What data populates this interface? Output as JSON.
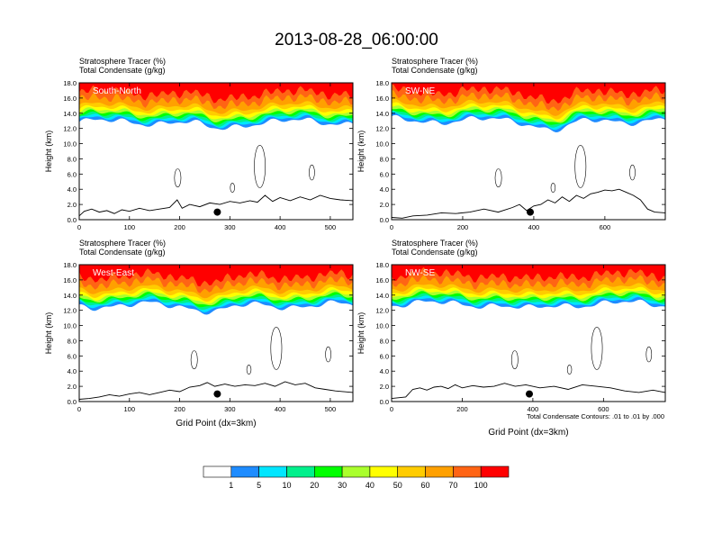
{
  "figure": {
    "title": "2013-08-28_06:00:00",
    "contour_note": "Total Condensate Contours: .01 to .01 by .000"
  },
  "colors": {
    "white": "#ffffff",
    "c1": "#1e8cff",
    "c2": "#00e6ff",
    "c3": "#00f08c",
    "c4": "#00ff00",
    "c5": "#aaff2d",
    "c6": "#ffff00",
    "c7": "#ffcc00",
    "c8": "#ffa000",
    "c9": "#ff6414",
    "c10": "#ff0000",
    "line": "#000000"
  },
  "colorbar": {
    "labels": [
      "1",
      "5",
      "10",
      "20",
      "30",
      "40",
      "50",
      "60",
      "70",
      "100"
    ],
    "colors": [
      "#ffffff",
      "#1e8cff",
      "#00e6ff",
      "#00f08c",
      "#00ff00",
      "#aaff2d",
      "#ffff00",
      "#ffcc00",
      "#ffa000",
      "#ff6414",
      "#ff0000"
    ]
  },
  "chart_data": [
    {
      "type": "heatmap",
      "label": "South-North",
      "title_line1": "Stratosphere Tracer   (%)",
      "title_line2": "Total Condensate   (g/kg)",
      "xlabel": "",
      "ylabel": "Height (km)",
      "xlim": [
        0,
        545
      ],
      "ylim": [
        0,
        18
      ],
      "xticks": [
        "0",
        "100",
        "200",
        "300",
        "400",
        "500"
      ],
      "yticks": [
        "0.0",
        "2.0",
        "4.0",
        "6.0",
        "8.0",
        "10.0",
        "12.0",
        "14.0",
        "16.0",
        "18.0"
      ],
      "tropopause_km": 13.2,
      "marker": {
        "x": 275,
        "y": 1.0
      },
      "terrain_km": [
        [
          0,
          0.5
        ],
        [
          10,
          1.1
        ],
        [
          25,
          1.4
        ],
        [
          40,
          1.0
        ],
        [
          55,
          1.2
        ],
        [
          70,
          0.8
        ],
        [
          85,
          1.3
        ],
        [
          100,
          1.1
        ],
        [
          120,
          1.5
        ],
        [
          140,
          1.2
        ],
        [
          160,
          1.4
        ],
        [
          180,
          1.6
        ],
        [
          195,
          2.6
        ],
        [
          205,
          1.5
        ],
        [
          220,
          2.0
        ],
        [
          240,
          1.7
        ],
        [
          260,
          2.2
        ],
        [
          280,
          2.0
        ],
        [
          300,
          2.4
        ],
        [
          320,
          2.2
        ],
        [
          340,
          2.5
        ],
        [
          355,
          2.3
        ],
        [
          370,
          3.2
        ],
        [
          385,
          2.4
        ],
        [
          400,
          2.9
        ],
        [
          420,
          2.5
        ],
        [
          440,
          3.0
        ],
        [
          460,
          2.6
        ],
        [
          480,
          3.2
        ],
        [
          500,
          2.8
        ],
        [
          520,
          2.6
        ],
        [
          545,
          2.5
        ]
      ]
    },
    {
      "type": "heatmap",
      "label": "SW-NE",
      "title_line1": "Stratosphere Tracer   (%)",
      "title_line2": "Total Condensate   (g/kg)",
      "xlabel": "",
      "ylabel": "Height (km)",
      "xlim": [
        0,
        770
      ],
      "ylim": [
        0,
        18
      ],
      "xticks": [
        "0",
        "200",
        "400",
        "600"
      ],
      "yticks": [
        "0.0",
        "2.0",
        "4.0",
        "6.0",
        "8.0",
        "10.0",
        "12.0",
        "14.0",
        "16.0",
        "18.0"
      ],
      "tropopause_km": 13.4,
      "marker": {
        "x": 390,
        "y": 1.0
      },
      "terrain_km": [
        [
          0,
          0.3
        ],
        [
          30,
          0.2
        ],
        [
          60,
          0.5
        ],
        [
          100,
          0.6
        ],
        [
          140,
          0.9
        ],
        [
          180,
          0.8
        ],
        [
          220,
          1.0
        ],
        [
          260,
          1.4
        ],
        [
          300,
          1.0
        ],
        [
          340,
          1.6
        ],
        [
          360,
          2.0
        ],
        [
          380,
          1.2
        ],
        [
          400,
          1.8
        ],
        [
          420,
          2.0
        ],
        [
          440,
          2.6
        ],
        [
          460,
          2.2
        ],
        [
          480,
          3.0
        ],
        [
          500,
          2.4
        ],
        [
          520,
          3.2
        ],
        [
          540,
          2.8
        ],
        [
          560,
          3.4
        ],
        [
          580,
          3.6
        ],
        [
          600,
          3.9
        ],
        [
          620,
          3.8
        ],
        [
          640,
          4.0
        ],
        [
          660,
          3.6
        ],
        [
          680,
          3.2
        ],
        [
          700,
          2.6
        ],
        [
          720,
          1.4
        ],
        [
          740,
          1.0
        ],
        [
          770,
          0.9
        ]
      ]
    },
    {
      "type": "heatmap",
      "label": "West-East",
      "title_line1": "Stratosphere Tracer   (%)",
      "title_line2": "Total Condensate   (g/kg)",
      "xlabel": "Grid Point (dx=3km)",
      "ylabel": "Height (km)",
      "xlim": [
        0,
        545
      ],
      "ylim": [
        0,
        18
      ],
      "xticks": [
        "0",
        "100",
        "200",
        "300",
        "400",
        "500"
      ],
      "yticks": [
        "0.0",
        "2.0",
        "4.0",
        "6.0",
        "8.0",
        "10.0",
        "12.0",
        "14.0",
        "16.0",
        "18.0"
      ],
      "tropopause_km": 13.0,
      "marker": {
        "x": 275,
        "y": 1.0
      },
      "terrain_km": [
        [
          0,
          0.3
        ],
        [
          20,
          0.4
        ],
        [
          40,
          0.6
        ],
        [
          60,
          0.9
        ],
        [
          80,
          0.7
        ],
        [
          100,
          1.0
        ],
        [
          120,
          1.2
        ],
        [
          140,
          0.9
        ],
        [
          160,
          1.2
        ],
        [
          180,
          1.5
        ],
        [
          200,
          1.3
        ],
        [
          220,
          1.9
        ],
        [
          240,
          2.1
        ],
        [
          255,
          2.5
        ],
        [
          270,
          2.0
        ],
        [
          290,
          2.3
        ],
        [
          310,
          2.0
        ],
        [
          330,
          2.2
        ],
        [
          350,
          2.1
        ],
        [
          370,
          2.4
        ],
        [
          390,
          2.0
        ],
        [
          410,
          2.6
        ],
        [
          430,
          2.2
        ],
        [
          450,
          2.4
        ],
        [
          470,
          1.8
        ],
        [
          490,
          1.6
        ],
        [
          510,
          1.4
        ],
        [
          545,
          1.2
        ]
      ]
    },
    {
      "type": "heatmap",
      "label": "NW-SE",
      "title_line1": "Stratosphere Tracer   (%)",
      "title_line2": "Total Condensate   (g/kg)",
      "xlabel": "Grid Point (dx=3km)",
      "ylabel": "Height (km)",
      "xlim": [
        0,
        775
      ],
      "ylim": [
        0,
        18
      ],
      "xticks": [
        "0",
        "200",
        "400",
        "600"
      ],
      "yticks": [
        "0.0",
        "2.0",
        "4.0",
        "6.0",
        "8.0",
        "10.0",
        "12.0",
        "14.0",
        "16.0",
        "18.0"
      ],
      "tropopause_km": 13.2,
      "marker": {
        "x": 390,
        "y": 1.0
      },
      "terrain_km": [
        [
          0,
          0.4
        ],
        [
          40,
          0.6
        ],
        [
          60,
          1.6
        ],
        [
          80,
          1.8
        ],
        [
          100,
          1.5
        ],
        [
          120,
          1.9
        ],
        [
          140,
          2.0
        ],
        [
          160,
          1.7
        ],
        [
          180,
          2.2
        ],
        [
          200,
          1.8
        ],
        [
          230,
          2.1
        ],
        [
          260,
          1.9
        ],
        [
          290,
          2.0
        ],
        [
          320,
          2.4
        ],
        [
          350,
          2.0
        ],
        [
          380,
          2.2
        ],
        [
          420,
          1.8
        ],
        [
          460,
          2.0
        ],
        [
          500,
          1.6
        ],
        [
          540,
          2.2
        ],
        [
          580,
          2.0
        ],
        [
          620,
          1.8
        ],
        [
          660,
          1.4
        ],
        [
          700,
          1.2
        ],
        [
          740,
          1.5
        ],
        [
          775,
          1.2
        ]
      ]
    }
  ]
}
